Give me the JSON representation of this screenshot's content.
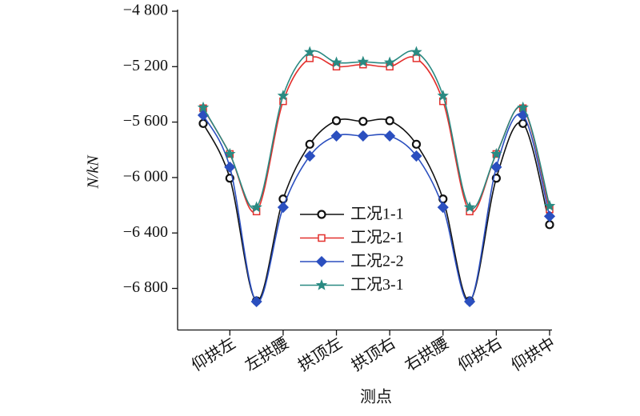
{
  "chart_data": {
    "type": "line",
    "x_label": "测点",
    "y_label": "N/kN",
    "categories": [
      null,
      "仰拱左",
      null,
      "左拱腰",
      null,
      "拱顶左",
      null,
      "拱顶右",
      null,
      "右拱腰",
      null,
      "仰拱右",
      null,
      "仰拱中"
    ],
    "ylim": [
      -7100,
      -4800
    ],
    "yticks": [
      {
        "value": -4800,
        "label": "−4 800"
      },
      {
        "value": -5200,
        "label": "−5 200"
      },
      {
        "value": -5600,
        "label": "−5 600"
      },
      {
        "value": -6000,
        "label": "−6 000"
      },
      {
        "value": -6400,
        "label": "−6 400"
      },
      {
        "value": -6800,
        "label": "−6 800"
      }
    ],
    "smooth": true,
    "series": [
      {
        "name": "工况1-1",
        "color": "#111111",
        "marker": "circle",
        "values": [
          -5610,
          -6005,
          -6890,
          -6155,
          -5760,
          -5590,
          -5595,
          -5590,
          -5760,
          -6155,
          -6890,
          -6005,
          -5610,
          -6340
        ]
      },
      {
        "name": "工况2-1",
        "color": "#e3302d",
        "marker": "square",
        "values": [
          -5500,
          -5830,
          -6245,
          -5450,
          -5140,
          -5200,
          -5185,
          -5200,
          -5140,
          -5450,
          -6245,
          -5830,
          -5500,
          -6230
        ]
      },
      {
        "name": "工况2-2",
        "color": "#2b4fbf",
        "marker": "diamond",
        "values": [
          -5550,
          -5925,
          -6895,
          -6215,
          -5845,
          -5700,
          -5700,
          -5700,
          -5845,
          -6215,
          -6895,
          -5925,
          -5550,
          -6280
        ]
      },
      {
        "name": "工况3-1",
        "color": "#2a8a82",
        "marker": "star",
        "values": [
          -5495,
          -5830,
          -6215,
          -5410,
          -5095,
          -5170,
          -5165,
          -5170,
          -5095,
          -5410,
          -6215,
          -5830,
          -5495,
          -6205
        ]
      }
    ]
  }
}
